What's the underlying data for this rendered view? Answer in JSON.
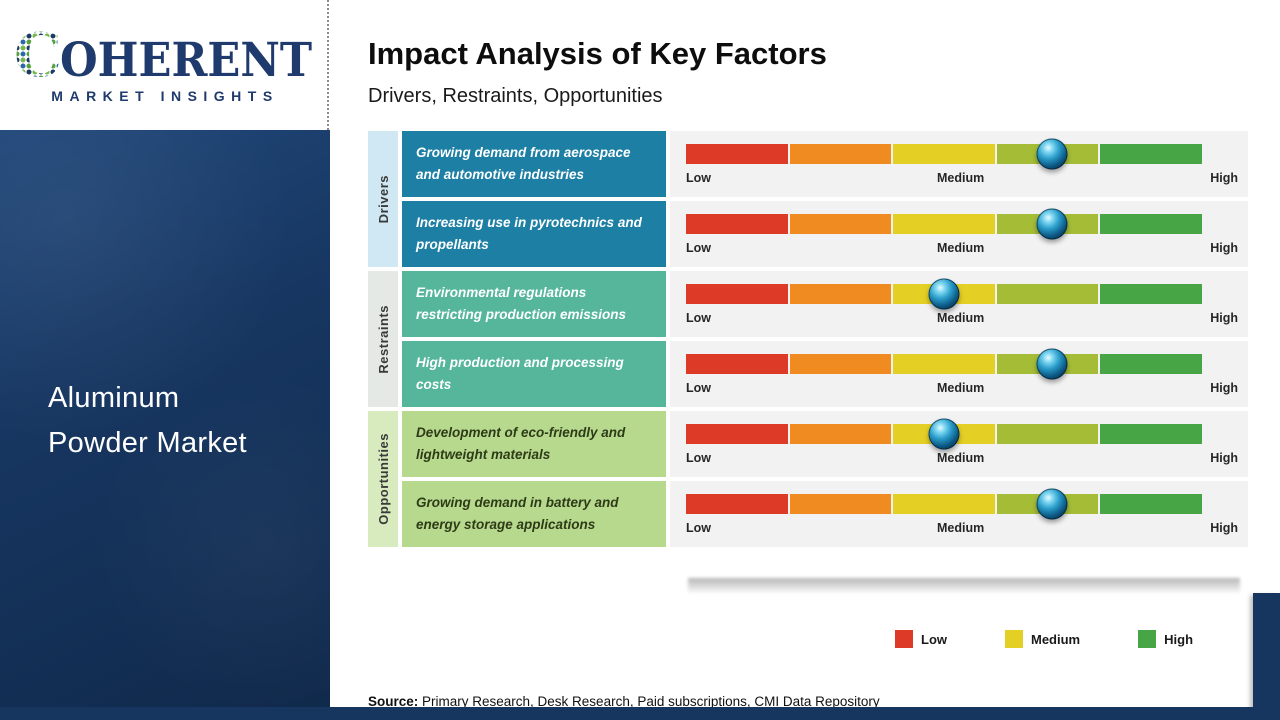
{
  "brand": {
    "c": "C",
    "rest": "OHERENT",
    "tagline": "MARKET INSIGHTS"
  },
  "sidebar": {
    "market_title_line1": "Aluminum",
    "market_title_line2": "Powder Market"
  },
  "header": {
    "title": "Impact Analysis of Key Factors",
    "subtitle": "Drivers, Restraints, Opportunities"
  },
  "scale_labels": {
    "low": "Low",
    "medium": "Medium",
    "high": "High"
  },
  "groups": [
    {
      "label": "Drivers",
      "rows": [
        {
          "text": "Growing demand from aerospace and automotive industries",
          "impact_pct": 71
        },
        {
          "text": "Increasing use in pyrotechnics and propellants",
          "impact_pct": 71
        }
      ]
    },
    {
      "label": "Restraints",
      "rows": [
        {
          "text": "Environmental regulations restricting production emissions",
          "impact_pct": 50
        },
        {
          "text": "High production and processing costs",
          "impact_pct": 71
        }
      ]
    },
    {
      "label": "Opportunities",
      "rows": [
        {
          "text": "Development of eco-friendly and lightweight materials",
          "impact_pct": 50
        },
        {
          "text": "Growing demand in battery and energy storage applications",
          "impact_pct": 71
        }
      ]
    }
  ],
  "legend": {
    "items": [
      {
        "label": "Low"
      },
      {
        "label": "Medium"
      },
      {
        "label": "High"
      }
    ]
  },
  "source": {
    "label": "Source:",
    "text": " Primary Research, Desk Research, Paid subscriptions, CMI Data Repository"
  },
  "colors": {
    "navy": "#16355f",
    "logo-navy": "#1f3a6d",
    "logo-green": "#55a13e",
    "logo-light-green": "#79b94c",
    "logo-blue": "#2c68a9",
    "logo-dark-blue": "#1c3a68",
    "driver-box": "#1d7fa4",
    "restraint-box": "#55b69c",
    "opportunity-box": "#b7d98e",
    "driver-cat": "#cfe8f3",
    "restraint-cat": "#e4e9e6",
    "opportunity-cat": "#d8ebbe",
    "seg-red": "#dd3b27",
    "seg-orange": "#f08b21",
    "seg-yellow": "#e4cf24",
    "seg-olive": "#a4bc36",
    "seg-green": "#47a546"
  },
  "chart_data": {
    "type": "bar",
    "title": "Impact Analysis of Key Factors",
    "subtitle": "Drivers, Restraints, Opportunities",
    "scale_ticks": [
      "Low",
      "Medium",
      "High"
    ],
    "scale_range_pct": [
      0,
      100
    ],
    "series": [
      {
        "group": "Drivers",
        "factor": "Growing demand from aerospace and automotive industries",
        "impact_pct": 71,
        "impact_level": "Medium-High"
      },
      {
        "group": "Drivers",
        "factor": "Increasing use in pyrotechnics and propellants",
        "impact_pct": 71,
        "impact_level": "Medium-High"
      },
      {
        "group": "Restraints",
        "factor": "Environmental regulations restricting production emissions",
        "impact_pct": 50,
        "impact_level": "Medium"
      },
      {
        "group": "Restraints",
        "factor": "High production and processing costs",
        "impact_pct": 71,
        "impact_level": "Medium-High"
      },
      {
        "group": "Opportunities",
        "factor": "Development of eco-friendly and lightweight materials",
        "impact_pct": 50,
        "impact_level": "Medium"
      },
      {
        "group": "Opportunities",
        "factor": "Growing demand in battery and energy storage applications",
        "impact_pct": 71,
        "impact_level": "Medium-High"
      }
    ],
    "legend": [
      "Low",
      "Medium",
      "High"
    ],
    "legend_position": "bottom",
    "grid": false
  }
}
